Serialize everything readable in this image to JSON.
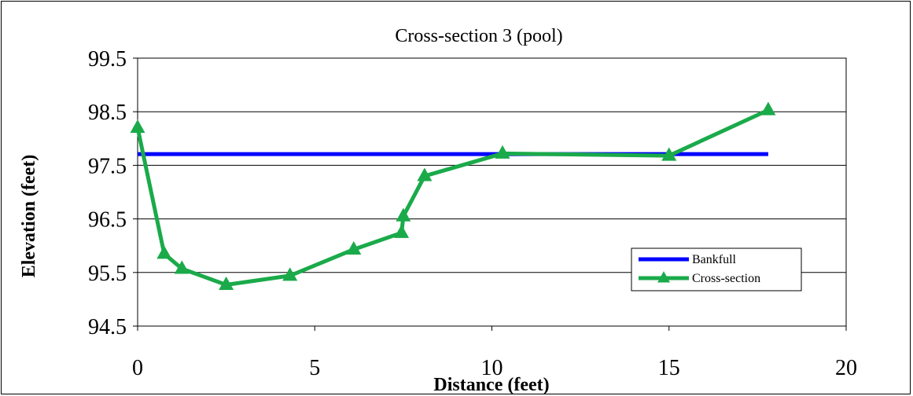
{
  "chart_data": {
    "type": "line",
    "title": "Cross-section 3 (pool)",
    "xlabel": "Distance (feet)",
    "ylabel": "Elevation (feet)",
    "xlim": [
      0,
      20
    ],
    "ylim": [
      94.5,
      99.5
    ],
    "xticks": [
      "0",
      "5",
      "10",
      "15",
      "20"
    ],
    "yticks": [
      "99.5",
      "98.5",
      "97.5",
      "96.5",
      "95.5",
      "94.5"
    ],
    "grid": true,
    "legend_position": "bottom-right",
    "series": [
      {
        "name": "Bankfull",
        "color": "#0000ff",
        "marker": "none",
        "x": [
          0,
          17.8
        ],
        "y": [
          97.71,
          97.71
        ]
      },
      {
        "name": "Cross-section",
        "color": "#1aaa4a",
        "marker": "triangle",
        "x": [
          0,
          0.75,
          1.25,
          2.5,
          4.3,
          6.1,
          7.45,
          7.5,
          8.1,
          10.3,
          15,
          17.8
        ],
        "y": [
          98.2,
          95.85,
          95.57,
          95.27,
          95.44,
          95.93,
          96.24,
          96.55,
          97.3,
          97.72,
          97.68,
          98.53
        ]
      }
    ]
  }
}
